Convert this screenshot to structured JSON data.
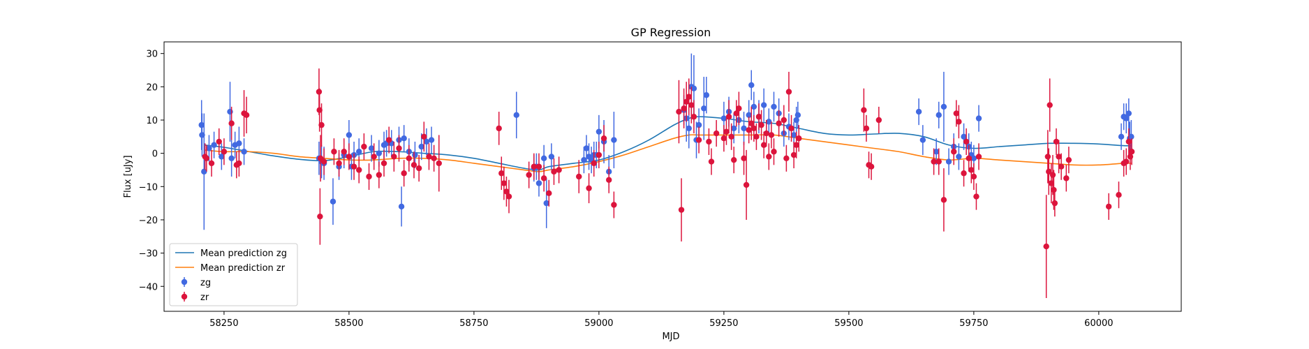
{
  "chart_data": {
    "type": "scatter",
    "title": "GP Regression",
    "xlabel": "MJD",
    "ylabel": "Flux [uJy]",
    "xlim": [
      58130,
      60165
    ],
    "ylim": [
      -47.5,
      33.5
    ],
    "x_ticks": [
      58250,
      58500,
      58750,
      59000,
      59250,
      59500,
      59750,
      60000
    ],
    "y_ticks": [
      30,
      20,
      10,
      0,
      -10,
      -20,
      -30,
      -40
    ],
    "grid": false,
    "legend_position": "lower-left",
    "legend": [
      {
        "label": "Mean prediction zg",
        "kind": "line",
        "color": "#1f77b4"
      },
      {
        "label": "Mean prediction zr",
        "kind": "line",
        "color": "#ff7f0e"
      },
      {
        "label": "zg",
        "kind": "errorbar",
        "color": "#4169e1"
      },
      {
        "label": "zr",
        "kind": "errorbar",
        "color": "#dc143c"
      }
    ],
    "mean_lines": [
      {
        "name": "Mean prediction zg",
        "color": "#1f77b4",
        "x": [
          58210,
          58250,
          58300,
          58350,
          58400,
          58450,
          58500,
          58550,
          58600,
          58650,
          58700,
          58750,
          58800,
          58850,
          58880,
          58900,
          58950,
          59000,
          59050,
          59100,
          59150,
          59180,
          59200,
          59250,
          59300,
          59350,
          59400,
          59450,
          59500,
          59550,
          59600,
          59650,
          59700,
          59750,
          59800,
          59850,
          59900,
          59950,
          60000,
          60050,
          60065
        ],
        "y": [
          2.5,
          1.8,
          0.5,
          -0.8,
          -1.8,
          -2.2,
          -1.0,
          0.5,
          0.5,
          0,
          -0.5,
          -1.5,
          -3.0,
          -4.5,
          -5.0,
          -4.0,
          -3.0,
          -2.0,
          0.5,
          4.0,
          8.5,
          10.5,
          11.0,
          10.5,
          9.5,
          9.0,
          7.5,
          6.0,
          5.5,
          5.8,
          6.0,
          5.0,
          2.5,
          1.5,
          2.0,
          2.5,
          3.0,
          3.0,
          2.8,
          2.3,
          2.3
        ]
      },
      {
        "name": "Mean prediction zr",
        "color": "#ff7f0e",
        "x": [
          58210,
          58250,
          58300,
          58350,
          58400,
          58450,
          58500,
          58550,
          58600,
          58650,
          58700,
          58750,
          58800,
          58850,
          58880,
          58900,
          58950,
          59000,
          59050,
          59100,
          59150,
          59180,
          59200,
          59250,
          59300,
          59350,
          59400,
          59450,
          59500,
          59550,
          59600,
          59650,
          59700,
          59750,
          59800,
          59850,
          59900,
          59950,
          60000,
          60050,
          60065
        ],
        "y": [
          1.0,
          0.5,
          0.5,
          0,
          -1.0,
          -1.5,
          -2.0,
          -2.0,
          -1.5,
          -1.5,
          -2.0,
          -3.0,
          -4.0,
          -5.0,
          -5.5,
          -5.0,
          -4.0,
          -2.5,
          -0.5,
          2.0,
          4.5,
          5.5,
          5.5,
          5.5,
          5.5,
          5.5,
          4.5,
          3.5,
          2.5,
          1.5,
          0.5,
          -1.0,
          -2.0,
          -1.5,
          -2.0,
          -2.5,
          -3.0,
          -3.5,
          -3.5,
          -3.0,
          -3.0
        ]
      }
    ],
    "series": [
      {
        "name": "zg",
        "color": "#4169e1",
        "x": [
          58205,
          58206,
          58210,
          58220,
          58230,
          58245,
          58262,
          58265,
          58272,
          58280,
          58290,
          58440,
          58445,
          58450,
          58468,
          58480,
          58490,
          58500,
          58505,
          58510,
          58520,
          58545,
          58560,
          58570,
          58575,
          58585,
          58600,
          58605,
          58610,
          58620,
          58632,
          58645,
          58655,
          58665,
          58835,
          58870,
          58875,
          58880,
          58890,
          58895,
          58905,
          58970,
          58975,
          58980,
          58985,
          58990,
          58995,
          59000,
          59010,
          59020,
          59030,
          59170,
          59175,
          59180,
          59185,
          59190,
          59195,
          59200,
          59210,
          59215,
          59250,
          59260,
          59270,
          59280,
          59290,
          59300,
          59305,
          59310,
          59320,
          59330,
          59340,
          59350,
          59360,
          59370,
          59380,
          59390,
          59395,
          59398,
          59640,
          59648,
          59675,
          59680,
          59690,
          59700,
          59710,
          59720,
          59730,
          59740,
          59745,
          59750,
          59760,
          60045,
          60050,
          60055,
          60060,
          60062,
          60065
        ],
        "y": [
          8.5,
          5.5,
          -5.5,
          1.5,
          2.5,
          -1.0,
          12.5,
          -1.5,
          2.5,
          3.0,
          0.5,
          -1.5,
          -2.5,
          -3.0,
          -14.5,
          -4.0,
          -0.5,
          5.5,
          -4.0,
          -0.5,
          0.5,
          1.5,
          0,
          2.5,
          3.0,
          3.0,
          4.0,
          -16.0,
          4.5,
          0.5,
          -0.5,
          2.0,
          3.5,
          4.0,
          11.5,
          -4.5,
          -4.0,
          -9.0,
          -1.5,
          -15.0,
          -1.0,
          -2.0,
          1.5,
          -1.0,
          -2.0,
          -0.5,
          -0.5,
          6.5,
          3.5,
          -5.5,
          4.0,
          13.0,
          10.5,
          7.5,
          20.0,
          19.5,
          4.0,
          8.5,
          13.5,
          17.5,
          10.5,
          12.5,
          7.5,
          10.0,
          7.5,
          11.5,
          20.5,
          14.0,
          11.0,
          14.5,
          9.5,
          14.0,
          12.0,
          6.0,
          8.0,
          5.5,
          10.0,
          11.5,
          12.5,
          4.0,
          0.5,
          11.5,
          14.0,
          -2.5,
          2.0,
          -1.0,
          5.0,
          2.0,
          -0.5,
          -1.5,
          10.5,
          5.0,
          11.0,
          10.5,
          12.0,
          4.5,
          5.0
        ],
        "err": [
          7.5,
          6.5,
          17.5,
          4.0,
          4.0,
          4.0,
          9.0,
          5.5,
          4.0,
          5.0,
          4.0,
          5.0,
          5.0,
          5.0,
          7.0,
          4.0,
          4.0,
          4.5,
          4.0,
          4.0,
          4.0,
          4.0,
          4.0,
          4.0,
          4.0,
          4.0,
          4.0,
          6.0,
          4.0,
          4.0,
          4.0,
          4.0,
          4.0,
          4.0,
          7.0,
          4.0,
          4.0,
          4.0,
          4.0,
          7.5,
          4.0,
          4.0,
          4.0,
          4.0,
          4.0,
          4.0,
          4.0,
          5.0,
          6.5,
          5.0,
          8.5,
          4.5,
          7.0,
          6.0,
          10.0,
          10.0,
          5.5,
          5.0,
          9.5,
          5.5,
          5.0,
          4.5,
          4.5,
          4.0,
          5.0,
          4.5,
          4.5,
          4.5,
          5.0,
          5.0,
          4.0,
          4.5,
          4.5,
          4.0,
          4.0,
          4.0,
          4.0,
          4.0,
          4.0,
          4.5,
          4.0,
          4.0,
          10.5,
          4.0,
          4.0,
          4.0,
          4.0,
          4.0,
          4.0,
          4.0,
          4.0,
          4.0,
          4.0,
          4.5,
          4.5,
          5.0,
          5.0
        ]
      },
      {
        "name": "zr",
        "color": "#dc143c",
        "x": [
          58212,
          58215,
          58225,
          58240,
          58250,
          58265,
          58275,
          58280,
          58290,
          58295,
          58440,
          58441,
          58442,
          58443,
          58445,
          58450,
          58470,
          58480,
          58490,
          58500,
          58510,
          58520,
          58530,
          58540,
          58550,
          58560,
          58570,
          58580,
          58590,
          58600,
          58610,
          58620,
          58630,
          58640,
          58650,
          58660,
          58670,
          58680,
          58800,
          58805,
          58810,
          58815,
          58820,
          58860,
          58870,
          58880,
          58890,
          58900,
          58910,
          58920,
          58960,
          58980,
          58990,
          59000,
          59010,
          59020,
          59030,
          59160,
          59165,
          59170,
          59175,
          59180,
          59185,
          59190,
          59200,
          59220,
          59225,
          59235,
          59250,
          59255,
          59260,
          59265,
          59270,
          59275,
          59280,
          59290,
          59295,
          59300,
          59305,
          59310,
          59315,
          59320,
          59325,
          59330,
          59335,
          59340,
          59345,
          59350,
          59360,
          59370,
          59375,
          59380,
          59385,
          59390,
          59395,
          59400,
          59530,
          59535,
          59540,
          59545,
          59560,
          59670,
          59680,
          59690,
          59710,
          59715,
          59720,
          59730,
          59735,
          59740,
          59745,
          59750,
          59755,
          59760,
          59895,
          59898,
          59900,
          59902,
          59905,
          59908,
          59910,
          59912,
          59915,
          59920,
          59925,
          59935,
          59940,
          60020,
          60040,
          60050,
          60055,
          60060,
          60063,
          60066
        ],
        "y": [
          -1.0,
          -1.5,
          -3.0,
          3.5,
          0.5,
          9.0,
          -3.5,
          -3.0,
          12.0,
          11.5,
          18.5,
          13.0,
          -19.0,
          -1.5,
          8.5,
          -2.5,
          0.5,
          -3.0,
          0.5,
          -1.0,
          -4.0,
          -5.0,
          2.0,
          -7.0,
          -1.0,
          -6.5,
          -3.0,
          4.0,
          -1.0,
          1.5,
          -6.0,
          -1.5,
          -3.5,
          -4.5,
          5.0,
          -1.0,
          -1.5,
          -3.0,
          7.5,
          -6.0,
          -9.0,
          -11.5,
          -13.0,
          -6.5,
          -4.0,
          -4.0,
          -7.5,
          -12.0,
          -5.5,
          -5.0,
          -7.0,
          -10.5,
          -3.0,
          -0.5,
          4.5,
          -8.0,
          -15.5,
          12.5,
          -17.0,
          13.5,
          15.5,
          17.0,
          14.5,
          11.0,
          4.0,
          3.5,
          -2.5,
          6.0,
          4.5,
          6.5,
          11.0,
          5.0,
          -2.0,
          12.0,
          13.5,
          -1.5,
          -9.5,
          7.0,
          9.0,
          7.5,
          5.0,
          11.0,
          8.5,
          2.5,
          6.0,
          -1.0,
          5.5,
          0.5,
          9.0,
          10.0,
          -1.5,
          18.5,
          7.5,
          -0.5,
          2.5,
          4.5,
          13.0,
          7.5,
          -3.5,
          -4.0,
          10.0,
          -2.5,
          -2.5,
          -14.0,
          0.5,
          12.0,
          9.5,
          -6.0,
          3.5,
          -1.5,
          -5.0,
          -7.0,
          -13.0,
          -1.0,
          -28.0,
          -1.0,
          -5.5,
          14.5,
          -9.0,
          -6.5,
          -11.0,
          -15.0,
          3.5,
          -1.0,
          -4.0,
          -7.5,
          -2.0,
          -16.0,
          -12.5,
          -3.0,
          -2.5,
          3.5,
          -1.0,
          0.5
        ],
        "err": [
          4.0,
          4.0,
          4.0,
          4.0,
          4.0,
          5.0,
          4.0,
          4.0,
          7.0,
          5.5,
          7.0,
          6.5,
          8.5,
          7.0,
          6.5,
          4.0,
          4.0,
          4.0,
          4.0,
          4.0,
          4.0,
          4.0,
          4.0,
          4.0,
          4.0,
          4.0,
          4.0,
          4.0,
          4.5,
          4.0,
          4.0,
          4.0,
          4.0,
          4.0,
          4.5,
          4.0,
          4.0,
          8.5,
          5.0,
          5.0,
          5.0,
          4.5,
          5.0,
          4.0,
          4.0,
          4.0,
          4.0,
          4.0,
          4.0,
          4.0,
          5.0,
          4.5,
          4.0,
          4.0,
          4.0,
          4.0,
          4.0,
          9.5,
          9.5,
          6.0,
          6.0,
          5.5,
          5.5,
          5.0,
          4.0,
          4.0,
          4.0,
          4.0,
          4.0,
          4.0,
          5.0,
          4.0,
          4.0,
          4.0,
          5.0,
          5.0,
          10.5,
          4.0,
          5.0,
          4.0,
          4.0,
          4.0,
          4.5,
          4.0,
          4.0,
          4.0,
          4.0,
          4.0,
          4.0,
          4.5,
          4.0,
          6.0,
          4.0,
          4.0,
          4.0,
          4.0,
          6.5,
          4.0,
          4.0,
          4.0,
          4.0,
          4.0,
          4.0,
          9.5,
          4.0,
          4.0,
          5.0,
          4.0,
          4.0,
          4.0,
          4.0,
          4.0,
          4.0,
          4.0,
          15.5,
          8.0,
          7.0,
          8.0,
          6.0,
          6.0,
          6.0,
          4.0,
          4.0,
          5.0,
          4.0,
          4.0,
          4.0,
          4.0,
          4.0,
          4.0,
          4.0,
          4.0,
          4.0,
          4.0
        ]
      }
    ]
  }
}
